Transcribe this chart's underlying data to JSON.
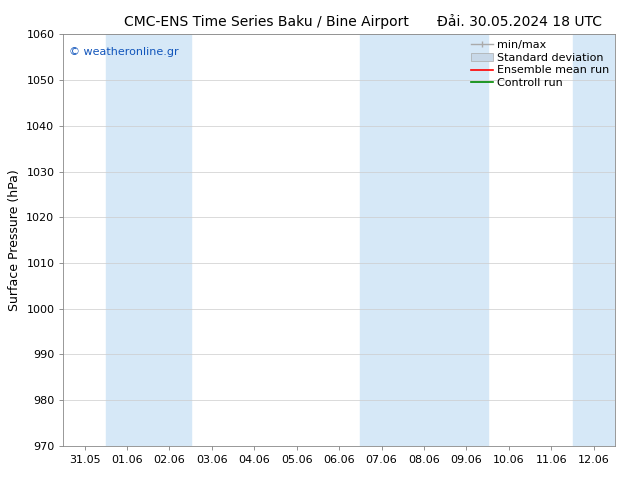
{
  "title_left": "CMC-ENS Time Series Baku / Bine Airport",
  "title_right": "Đải. 30.05.2024 18 UTC",
  "ylabel": "Surface Pressure (hPa)",
  "ylim": [
    970,
    1060
  ],
  "yticks": [
    970,
    980,
    990,
    1000,
    1010,
    1020,
    1030,
    1040,
    1050,
    1060
  ],
  "xlabels": [
    "31.05",
    "01.06",
    "02.06",
    "03.06",
    "04.06",
    "05.06",
    "06.06",
    "07.06",
    "08.06",
    "09.06",
    "10.06",
    "11.06",
    "12.06"
  ],
  "shaded_ranges": [
    [
      1,
      3
    ],
    [
      7,
      10
    ],
    [
      12,
      13
    ]
  ],
  "band_color": "#d6e8f7",
  "bg_color": "#ffffff",
  "watermark": "© weatheronline.gr",
  "legend_entries": [
    "min/max",
    "Standard deviation",
    "Ensemble mean run",
    "Controll run"
  ],
  "legend_colors_line": [
    "#aaaaaa",
    "#bbbbcc",
    "#ff0000",
    "#008800"
  ],
  "title_fontsize": 10,
  "tick_fontsize": 8,
  "ylabel_fontsize": 9,
  "legend_fontsize": 8,
  "watermark_color": "#1155bb"
}
